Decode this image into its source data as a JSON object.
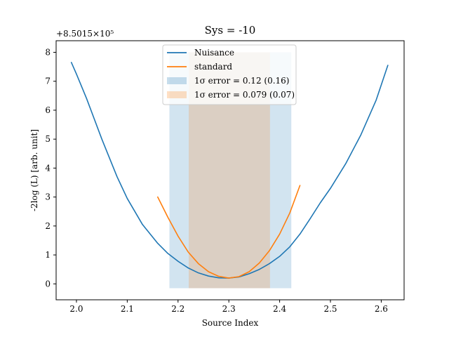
{
  "chart_data": {
    "type": "line",
    "title": "Sys = -10",
    "xlabel": "Source Index",
    "ylabel": "-2log (L) [arb. unit]",
    "y_offset_label": "+8.5015×10⁵",
    "xlim": [
      1.96,
      2.645
    ],
    "ylim": [
      -0.55,
      8.4
    ],
    "xticks": [
      2.0,
      2.1,
      2.2,
      2.3,
      2.4,
      2.5,
      2.6
    ],
    "xtick_labels": [
      "2.0",
      "2.1",
      "2.2",
      "2.3",
      "2.4",
      "2.5",
      "2.6"
    ],
    "yticks": [
      0,
      1,
      2,
      3,
      4,
      5,
      6,
      7,
      8
    ],
    "ytick_labels": [
      "0",
      "1",
      "2",
      "3",
      "4",
      "5",
      "6",
      "7",
      "8"
    ],
    "grid": false,
    "legend_position": "top-center",
    "bands": [
      {
        "name": "1σ error = 0.12 (0.16)",
        "x0": 2.183,
        "x1": 2.423,
        "y0": -0.15,
        "y1": 8.0,
        "color": "#1f77b4",
        "opacity": 0.2
      },
      {
        "name": "1σ error = 0.079 (0.07)",
        "x0": 2.221,
        "x1": 2.381,
        "y0": -0.15,
        "y1": 8.0,
        "color": "#ff7f0e",
        "opacity": 0.2
      }
    ],
    "series": [
      {
        "name": "Nuisance",
        "color": "#1f77b4",
        "x": [
          1.99,
          2.0,
          2.02,
          2.05,
          2.08,
          2.1,
          2.13,
          2.16,
          2.18,
          2.2,
          2.22,
          2.24,
          2.26,
          2.28,
          2.3,
          2.32,
          2.34,
          2.36,
          2.38,
          2.4,
          2.42,
          2.44,
          2.46,
          2.48,
          2.5,
          2.53,
          2.56,
          2.59,
          2.613
        ],
        "y": [
          7.65,
          7.25,
          6.4,
          5.0,
          3.7,
          2.95,
          2.05,
          1.4,
          1.05,
          0.78,
          0.55,
          0.38,
          0.27,
          0.21,
          0.2,
          0.24,
          0.35,
          0.5,
          0.7,
          0.95,
          1.28,
          1.72,
          2.25,
          2.8,
          3.3,
          4.15,
          5.15,
          6.35,
          7.55
        ]
      },
      {
        "name": "standard",
        "color": "#ff7f0e",
        "x": [
          2.16,
          2.18,
          2.2,
          2.22,
          2.24,
          2.26,
          2.28,
          2.3,
          2.32,
          2.34,
          2.36,
          2.38,
          2.4,
          2.42,
          2.44
        ],
        "y": [
          3.0,
          2.3,
          1.65,
          1.1,
          0.7,
          0.42,
          0.26,
          0.2,
          0.25,
          0.42,
          0.72,
          1.15,
          1.72,
          2.45,
          3.4
        ]
      }
    ]
  }
}
